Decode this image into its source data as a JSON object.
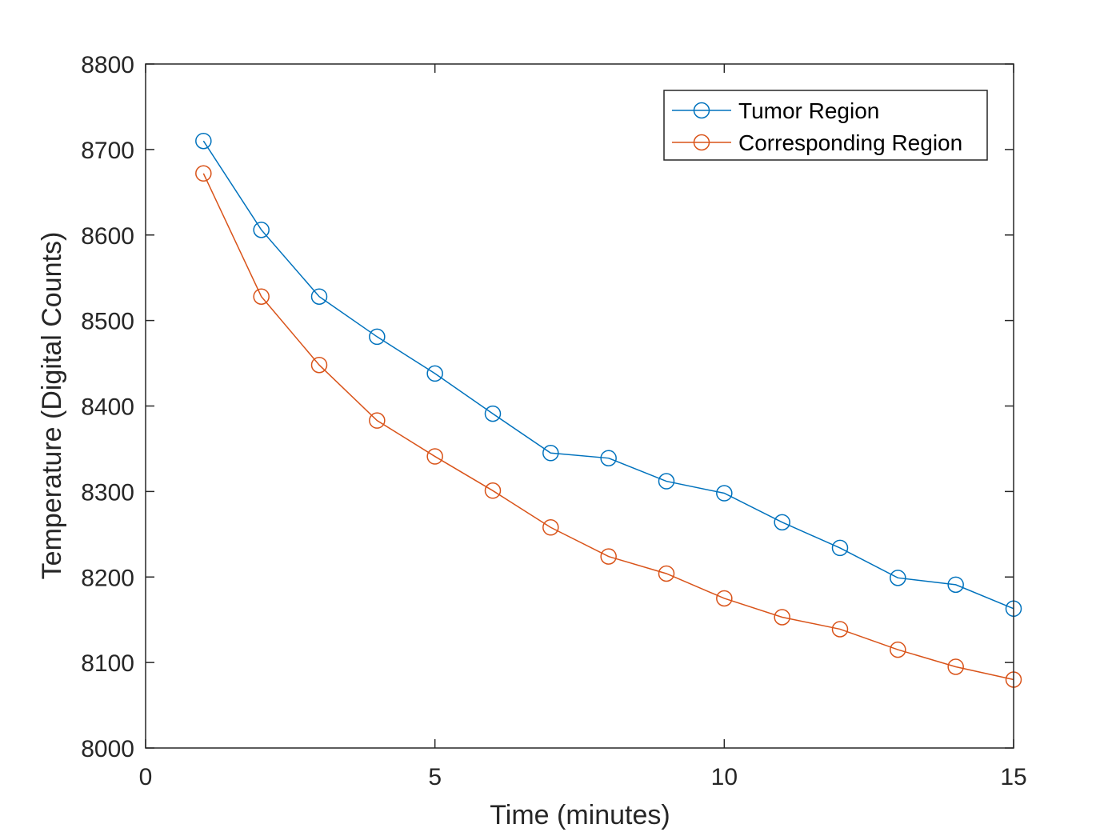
{
  "chart_data": {
    "type": "line",
    "title": "",
    "xlabel": "Time (minutes)",
    "ylabel": "Temperature (Digital Counts)",
    "xlim": [
      0,
      15
    ],
    "ylim": [
      8000,
      8800
    ],
    "xticks": [
      0,
      5,
      10,
      15
    ],
    "yticks": [
      8000,
      8100,
      8200,
      8300,
      8400,
      8500,
      8600,
      8700,
      8800
    ],
    "grid": false,
    "legend_position": "top-right",
    "marker": "circle",
    "x": [
      1,
      2,
      3,
      4,
      5,
      6,
      7,
      8,
      9,
      10,
      11,
      12,
      13,
      14,
      15
    ],
    "series": [
      {
        "name": "Tumor Region",
        "color": "#0072BD",
        "values": [
          8710,
          8606,
          8528,
          8481,
          8438,
          8391,
          8345,
          8339,
          8312,
          8298,
          8264,
          8234,
          8199,
          8191,
          8163
        ]
      },
      {
        "name": "Corresponding Region",
        "color": "#D95319",
        "values": [
          8672,
          8528,
          8448,
          8383,
          8341,
          8301,
          8258,
          8224,
          8204,
          8175,
          8153,
          8139,
          8115,
          8095,
          8080
        ]
      }
    ]
  }
}
